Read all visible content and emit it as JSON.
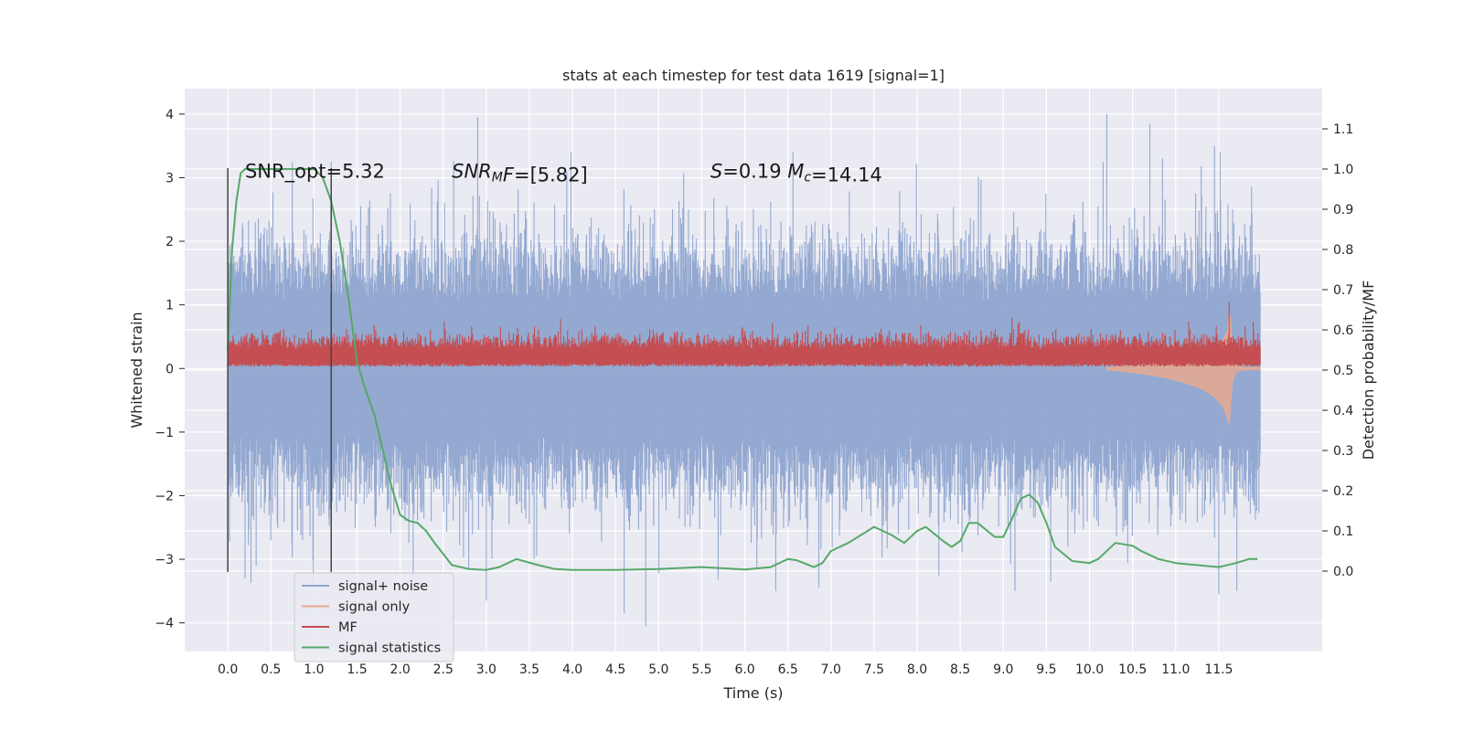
{
  "chart_data": {
    "type": "line",
    "title": "stats at each timestep for test data 1619 [signal=1]",
    "xlabel": "Time (s)",
    "ylabel": "Whitened strain",
    "ylabel_right": "Detection probability/MF",
    "xlim": [
      -0.5,
      12.7
    ],
    "ylim": [
      -4.45,
      4.4
    ],
    "ylim_right": [
      -0.2,
      1.2
    ],
    "x_ticks": [
      0.0,
      0.5,
      1.0,
      1.5,
      2.0,
      2.5,
      3.0,
      3.5,
      4.0,
      4.5,
      5.0,
      5.5,
      6.0,
      6.5,
      7.0,
      7.5,
      8.0,
      8.5,
      9.0,
      9.5,
      10.0,
      10.5,
      11.0,
      11.5
    ],
    "x_tick_labels": [
      "0.0",
      "0.5",
      "1.0",
      "1.5",
      "2.0",
      "2.5",
      "3.0",
      "3.5",
      "4.0",
      "4.5",
      "5.0",
      "5.5",
      "6.0",
      "6.5",
      "7.0",
      "7.5",
      "8.0",
      "8.5",
      "9.0",
      "9.5",
      "10.0",
      "10.5",
      "11.0",
      "11.5"
    ],
    "y_ticks": [
      -4,
      -3,
      -2,
      -1,
      0,
      1,
      2,
      3,
      4
    ],
    "y_tick_labels": [
      "−4",
      "−3",
      "−2",
      "−1",
      "0",
      "1",
      "2",
      "3",
      "4"
    ],
    "y_right_ticks": [
      0.0,
      0.1,
      0.2,
      0.3,
      0.4,
      0.5,
      0.6,
      0.7,
      0.8,
      0.9,
      1.0,
      1.1
    ],
    "y_right_tick_labels": [
      "0.0",
      "0.1",
      "0.2",
      "0.3",
      "0.4",
      "0.5",
      "0.6",
      "0.7",
      "0.8",
      "0.9",
      "1.0",
      "1.1"
    ],
    "grid": true,
    "legend": {
      "placement": "lower-left",
      "entries": [
        {
          "name": "signal+ noise",
          "color": "#8fa5cf"
        },
        {
          "name": "signal only",
          "color": "#e8a98f"
        },
        {
          "name": "MF",
          "color": "#c44e52"
        },
        {
          "name": "signal statistics",
          "color": "#55a868"
        }
      ]
    },
    "annotations": [
      {
        "text": "SNR_opt=5.32",
        "x": 0.2,
        "y": 3.1
      },
      {
        "text": "SNR_MF=[5.82]",
        "x": 2.6,
        "y": 3.1,
        "segments": [
          {
            "t": "SNR",
            "i": true
          },
          {
            "t": "M",
            "i": true,
            "sub": true
          },
          {
            "t": "F",
            "i": true
          },
          {
            "t": "=[5.82]"
          }
        ]
      },
      {
        "text": "S=0.19   M_c=14.14",
        "x": 5.6,
        "y": 3.1,
        "segments": [
          {
            "t": "S",
            "i": true
          },
          {
            "t": "=0.19   "
          },
          {
            "t": "M",
            "i": true
          },
          {
            "t": "c",
            "i": true,
            "sub": true
          },
          {
            "t": "=14.14"
          }
        ]
      }
    ],
    "vlines": [
      {
        "x": 0.0,
        "ymin": -3.2,
        "ymax": 3.15
      },
      {
        "x": 1.2,
        "ymin": -3.2,
        "ymax": 3.15
      }
    ],
    "series": [
      {
        "name": "signal+ noise",
        "color": "#8fa5cf",
        "x_range": [
          0.0,
          11.98
        ],
        "notable_peaks": [
          [
            1.2,
            3.25
          ],
          [
            2.9,
            3.95
          ],
          [
            10.2,
            4.0
          ],
          [
            10.7,
            3.85
          ],
          [
            11.45,
            3.5
          ]
        ],
        "notable_troughs": [
          [
            0.2,
            -3.3
          ],
          [
            3.0,
            -3.65
          ],
          [
            4.6,
            -3.85
          ],
          [
            4.85,
            -4.05
          ],
          [
            9.55,
            -3.35
          ],
          [
            11.5,
            -3.55
          ]
        ]
      },
      {
        "name": "signal only",
        "color": "#e8a98f",
        "x": [
          10.2,
          10.6,
          10.9,
          11.1,
          11.3,
          11.45,
          11.55,
          11.6,
          11.62,
          11.64,
          11.66,
          11.7,
          11.8,
          11.98
        ],
        "y": [
          0.02,
          0.05,
          0.09,
          0.14,
          0.22,
          0.32,
          0.45,
          0.6,
          0.9,
          0.7,
          0.3,
          0.05,
          0.02,
          0.02
        ],
        "y_lower": [
          -0.02,
          -0.08,
          -0.15,
          -0.22,
          -0.32,
          -0.45,
          -0.6,
          -0.78,
          -0.9,
          -0.5,
          -0.2,
          -0.05,
          -0.02,
          -0.02
        ]
      },
      {
        "name": "MF",
        "color": "#c44e52",
        "x_range": [
          0.0,
          11.98
        ],
        "notable_peaks": [
          [
            0.4,
            0.6
          ],
          [
            1.7,
            0.68
          ],
          [
            9.1,
            0.8
          ],
          [
            11.62,
            1.05
          ],
          [
            11.9,
            0.73
          ]
        ]
      },
      {
        "name": "signal statistics",
        "color": "#55a868",
        "x": [
          0.0,
          0.05,
          0.1,
          0.15,
          0.2,
          0.3,
          0.5,
          0.7,
          0.9,
          1.0,
          1.1,
          1.2,
          1.3,
          1.4,
          1.5,
          1.6,
          1.7,
          1.8,
          1.9,
          2.0,
          2.1,
          2.2,
          2.3,
          2.4,
          2.6,
          2.8,
          3.0,
          3.15,
          3.35,
          3.6,
          3.8,
          4.0,
          4.5,
          5.0,
          5.5,
          6.0,
          6.3,
          6.5,
          6.6,
          6.8,
          6.9,
          7.0,
          7.2,
          7.5,
          7.7,
          7.85,
          8.0,
          8.1,
          8.3,
          8.4,
          8.5,
          8.6,
          8.7,
          8.9,
          9.0,
          9.1,
          9.2,
          9.3,
          9.4,
          9.5,
          9.6,
          9.8,
          10.0,
          10.1,
          10.3,
          10.5,
          10.6,
          10.8,
          11.0,
          11.5,
          11.7,
          11.85,
          11.95
        ],
        "y": [
          0.55,
          0.8,
          0.92,
          0.99,
          1.0,
          1.0,
          1.0,
          1.0,
          1.0,
          1.0,
          0.98,
          0.92,
          0.82,
          0.68,
          0.52,
          0.45,
          0.39,
          0.3,
          0.21,
          0.14,
          0.125,
          0.12,
          0.1,
          0.07,
          0.015,
          0.005,
          0.003,
          0.01,
          0.03,
          0.015,
          0.005,
          0.003,
          0.003,
          0.005,
          0.01,
          0.004,
          0.01,
          0.03,
          0.027,
          0.01,
          0.02,
          0.05,
          0.07,
          0.11,
          0.09,
          0.07,
          0.1,
          0.11,
          0.075,
          0.06,
          0.075,
          0.12,
          0.12,
          0.085,
          0.085,
          0.13,
          0.18,
          0.19,
          0.17,
          0.12,
          0.06,
          0.025,
          0.02,
          0.03,
          0.07,
          0.063,
          0.05,
          0.03,
          0.02,
          0.01,
          0.02,
          0.03,
          0.03
        ]
      }
    ]
  }
}
